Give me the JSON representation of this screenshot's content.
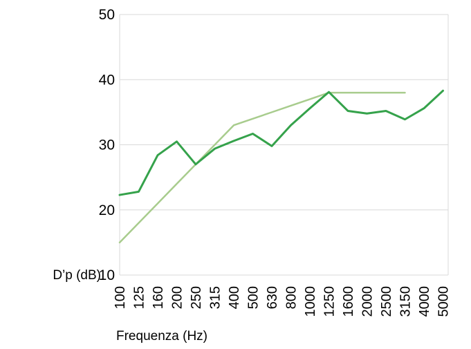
{
  "chart_data": {
    "type": "line",
    "title": "",
    "xlabel": "Frequenza (Hz)",
    "ylabel": "D’p (dB)",
    "categories": [
      "100",
      "125",
      "160",
      "200",
      "250",
      "315",
      "400",
      "500",
      "630",
      "800",
      "1000",
      "1250",
      "1600",
      "2000",
      "2500",
      "3150",
      "4000",
      "5000"
    ],
    "ylim": [
      10,
      50
    ],
    "yticks": [
      10,
      20,
      30,
      40,
      50
    ],
    "grid": "horizontal-gridlines-at-yticks",
    "legend_position": "none",
    "plot_border": "left-right-top-bottom-light-gray",
    "series": [
      {
        "name": "dark-green-measured-curve",
        "color": "#35A24B",
        "stroke_width": 3,
        "values": [
          22.3,
          22.8,
          28.4,
          30.5,
          27.0,
          29.4,
          30.6,
          31.7,
          29.8,
          33.0,
          35.6,
          38.1,
          35.2,
          34.8,
          35.2,
          33.9,
          35.6,
          38.3
        ]
      },
      {
        "name": "light-green-reference-curve",
        "color": "#A8CC8D",
        "stroke_width": 2.5,
        "values": [
          15,
          18,
          21,
          24,
          27,
          30,
          33,
          34,
          35,
          36,
          37,
          38,
          38,
          38,
          38,
          38
        ]
      }
    ]
  },
  "colors": {
    "background": "#ffffff",
    "gridline": "#d9d9d9",
    "axis_line": "#d9d9d9",
    "text": "#000000"
  }
}
